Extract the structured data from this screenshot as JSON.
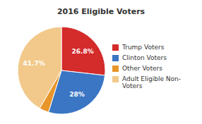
{
  "chart_data": {
    "type": "pie",
    "title": "2016 Eligible Voters",
    "categories": [
      "Trump Voters",
      "Clinton Voters",
      "Other Voters",
      "Adult Eligible Non-\nVoters"
    ],
    "values": [
      26.8,
      28.0,
      3.5,
      41.7
    ],
    "value_labels": [
      "26.8%",
      "28%",
      null,
      "41.7%"
    ],
    "colors": [
      "#d42b2b",
      "#3a76c4",
      "#e8952a",
      "#f2c98a"
    ],
    "data_labels": true,
    "legend": "right"
  }
}
